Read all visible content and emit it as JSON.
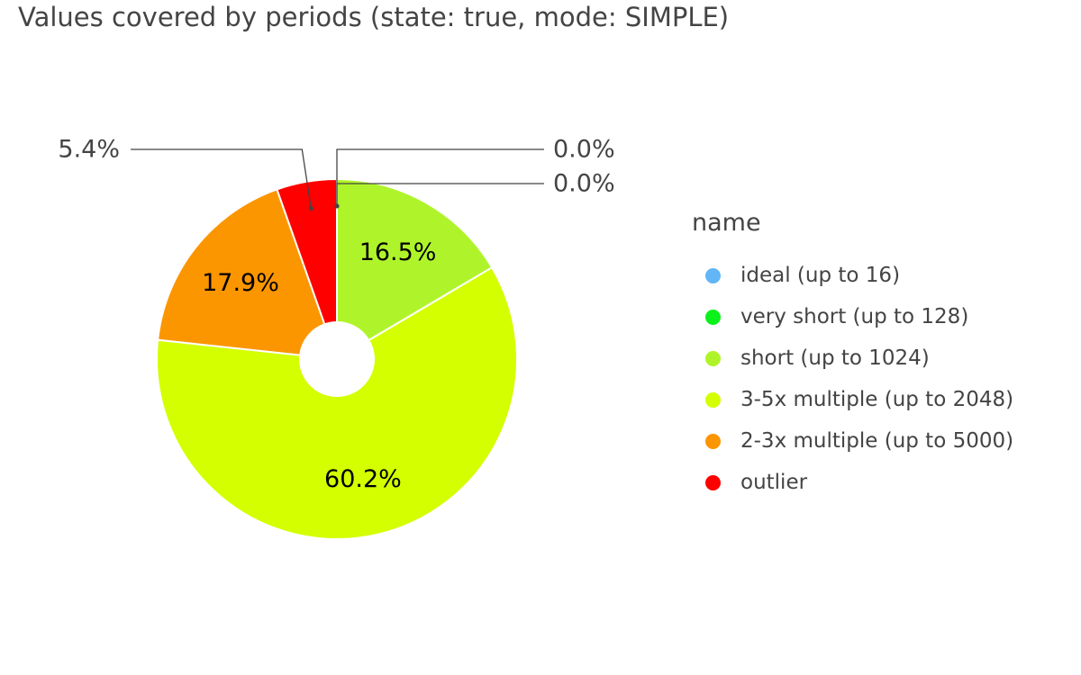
{
  "chart_data": {
    "type": "pie",
    "title": "Values covered by periods (state: true, mode: SIMPLE)",
    "legend_title": "name",
    "legend_position": "right",
    "donut": true,
    "series": [
      {
        "name": "ideal (up to 16)",
        "value": 0.0,
        "label": "0.0%",
        "color": "#62b6f6"
      },
      {
        "name": "very short (up to 128)",
        "value": 0.0,
        "label": "0.0%",
        "color": "#0cf11a"
      },
      {
        "name": "short (up to 1024)",
        "value": 16.5,
        "label": "16.5%",
        "color": "#aff42a"
      },
      {
        "name": "3-5x multiple (up to 2048)",
        "value": 60.2,
        "label": "60.2%",
        "color": "#d3ff00"
      },
      {
        "name": "2-3x multiple (up to 5000)",
        "value": 17.9,
        "label": "17.9%",
        "color": "#fb9600"
      },
      {
        "name": "outlier",
        "value": 5.4,
        "label": "5.4%",
        "color": "#fe0000"
      }
    ]
  }
}
